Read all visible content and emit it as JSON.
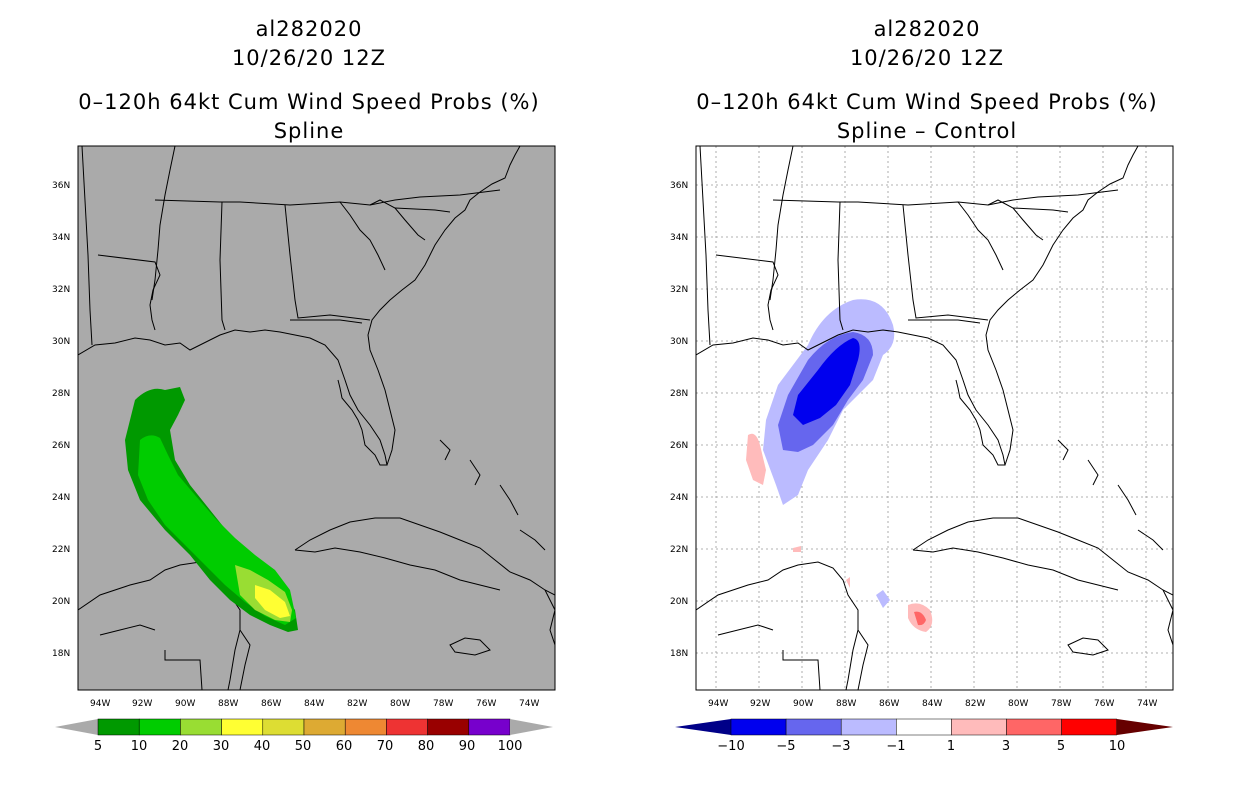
{
  "left": {
    "title1": "al282020",
    "title2": "10/26/20 12Z",
    "title3": "0–120h 64kt Cum Wind Speed Probs (%)",
    "title4": "Spline",
    "colorbar": {
      "labels": [
        "5",
        "10",
        "20",
        "30",
        "40",
        "50",
        "60",
        "70",
        "80",
        "90",
        "100"
      ],
      "colors": [
        "#009900",
        "#00cc00",
        "#99dd33",
        "#ffff33",
        "#dddd33",
        "#ddaa33",
        "#ee8833",
        "#ee3333",
        "#990000",
        "#7700cc"
      ]
    }
  },
  "right": {
    "title1": "al282020",
    "title2": "10/26/20 12Z",
    "title3": "0–120h 64kt Cum Wind Speed Probs (%)",
    "title4": "Spline – Control",
    "colorbar": {
      "labels": [
        "−10",
        "−5",
        "−3",
        "−1",
        "1",
        "3",
        "5",
        "10"
      ],
      "colors": [
        "#0000ee",
        "#6666ee",
        "#bbbbff",
        "#ffffff",
        "#ffbbbb",
        "#ff6666",
        "#ff0000"
      ]
    }
  },
  "axes": {
    "lat_labels": [
      "36N",
      "34N",
      "32N",
      "30N",
      "28N",
      "26N",
      "24N",
      "22N",
      "20N",
      "18N"
    ],
    "lon_labels": [
      "94W",
      "92W",
      "90W",
      "88W",
      "86W",
      "84W",
      "82W",
      "80W",
      "78W",
      "76W",
      "74W"
    ]
  }
}
